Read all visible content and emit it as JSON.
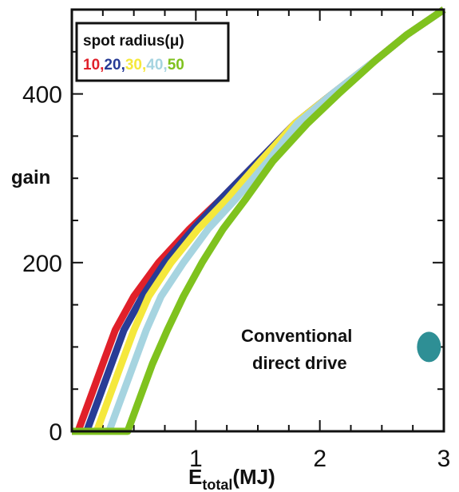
{
  "chart_data": {
    "type": "line",
    "xlabel": "E",
    "xlabel_sub": "total",
    "xlabel_unit": "(MJ)",
    "ylabel": "gain",
    "xlim": [
      0,
      3
    ],
    "ylim": [
      0,
      500
    ],
    "x_ticks": [
      "1",
      "2",
      "3"
    ],
    "y_ticks": [
      "0",
      "200",
      "400"
    ],
    "legend": {
      "title": "spot radius(μ)",
      "placement": "top-left",
      "entries": [
        "10",
        "20",
        "30",
        "40",
        "50"
      ],
      "separator": ","
    },
    "series": [
      {
        "name": "10",
        "color": "#e0202a",
        "points": [
          [
            0.05,
            0
          ],
          [
            0.15,
            40
          ],
          [
            0.25,
            80
          ],
          [
            0.35,
            120
          ],
          [
            0.5,
            160
          ],
          [
            0.7,
            200
          ],
          [
            0.95,
            240
          ],
          [
            1.2,
            275
          ],
          [
            1.5,
            320
          ],
          [
            1.8,
            365
          ],
          [
            2.1,
            400
          ],
          [
            2.45,
            440
          ],
          [
            2.7,
            470
          ],
          [
            3.0,
            500
          ]
        ]
      },
      {
        "name": "20",
        "color": "#283c96",
        "points": [
          [
            0.12,
            0
          ],
          [
            0.22,
            40
          ],
          [
            0.32,
            80
          ],
          [
            0.42,
            120
          ],
          [
            0.57,
            160
          ],
          [
            0.75,
            200
          ],
          [
            0.98,
            240
          ],
          [
            1.2,
            275
          ],
          [
            1.5,
            320
          ],
          [
            1.8,
            365
          ],
          [
            2.1,
            400
          ],
          [
            2.45,
            440
          ],
          [
            2.7,
            470
          ],
          [
            3.0,
            500
          ]
        ]
      },
      {
        "name": "30",
        "color": "#f5e83c",
        "points": [
          [
            0.2,
            0
          ],
          [
            0.3,
            40
          ],
          [
            0.4,
            80
          ],
          [
            0.5,
            120
          ],
          [
            0.62,
            160
          ],
          [
            0.8,
            200
          ],
          [
            1.02,
            240
          ],
          [
            1.25,
            275
          ],
          [
            1.52,
            320
          ],
          [
            1.8,
            365
          ],
          [
            2.1,
            400
          ],
          [
            2.45,
            440
          ],
          [
            2.7,
            470
          ],
          [
            3.0,
            500
          ]
        ]
      },
      {
        "name": "40",
        "color": "#a6d4e0",
        "points": [
          [
            0.3,
            0
          ],
          [
            0.4,
            40
          ],
          [
            0.5,
            80
          ],
          [
            0.6,
            120
          ],
          [
            0.72,
            160
          ],
          [
            0.9,
            200
          ],
          [
            1.1,
            240
          ],
          [
            1.32,
            275
          ],
          [
            1.58,
            320
          ],
          [
            1.82,
            365
          ],
          [
            2.1,
            400
          ],
          [
            2.45,
            440
          ],
          [
            2.7,
            470
          ],
          [
            3.0,
            500
          ]
        ]
      },
      {
        "name": "50",
        "color": "#7fc21e",
        "points": [
          [
            0.0,
            0
          ],
          [
            0.45,
            0
          ],
          [
            0.55,
            40
          ],
          [
            0.65,
            80
          ],
          [
            0.77,
            120
          ],
          [
            0.9,
            160
          ],
          [
            1.05,
            200
          ],
          [
            1.22,
            240
          ],
          [
            1.4,
            275
          ],
          [
            1.62,
            320
          ],
          [
            1.9,
            365
          ],
          [
            2.15,
            400
          ],
          [
            2.45,
            440
          ],
          [
            2.7,
            470
          ],
          [
            3.0,
            500
          ]
        ]
      }
    ],
    "marker": {
      "label": "Conventional direct drive",
      "x": 2.88,
      "y": 100,
      "color": "#2e8f95"
    },
    "annotation_lines": [
      "Conventional",
      "direct drive"
    ]
  }
}
